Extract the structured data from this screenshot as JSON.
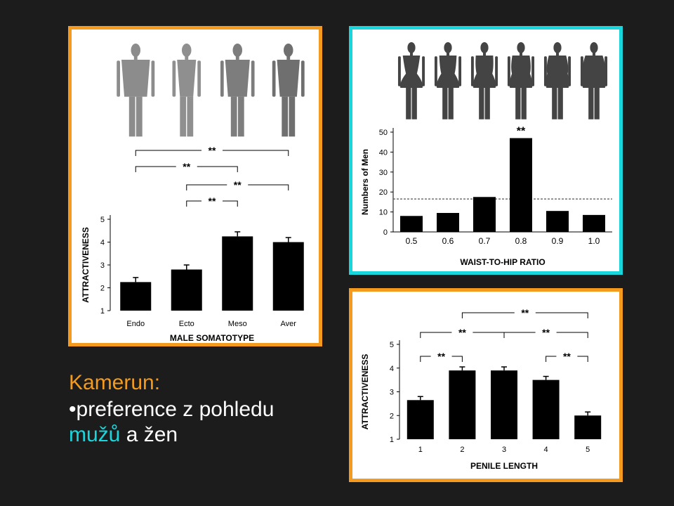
{
  "slide": {
    "title": "Kamerun:",
    "bullet_prefix": "•",
    "line1": "preference z pohledu",
    "line2_highlight": "mužů",
    "line2_rest": "a žen"
  },
  "colors": {
    "background": "#1c1c1c",
    "orange": "#f39a1f",
    "cyan": "#19d6dd",
    "bar": "#000000",
    "figure": "#8a8a8a"
  },
  "chart_data": [
    {
      "type": "bar",
      "categories": [
        "Endo",
        "Ecto",
        "Meso",
        "Aver"
      ],
      "values": [
        2.25,
        2.8,
        4.25,
        4.0
      ],
      "errors": [
        0.2,
        0.2,
        0.2,
        0.2
      ],
      "xlabel": "MALE SOMATOTYPE",
      "ylabel": "ATTRACTIVENESS",
      "ylim": [
        1,
        5
      ],
      "yticks": [
        "1",
        "2",
        "3",
        "4",
        "5"
      ],
      "annotations": [
        {
          "label": "**",
          "from": "Endo",
          "to": "Aver"
        },
        {
          "label": "**",
          "from": "Endo",
          "to": "Meso"
        },
        {
          "label": "**",
          "from": "Ecto",
          "to": "Aver"
        },
        {
          "label": "**",
          "from": "Ecto",
          "to": "Meso"
        }
      ]
    },
    {
      "type": "bar",
      "categories": [
        "0.5",
        "0.6",
        "0.7",
        "0.8",
        "0.9",
        "1.0"
      ],
      "values": [
        8,
        9.5,
        17.5,
        47,
        10.5,
        8.5
      ],
      "reference_line": 16.5,
      "xlabel": "WAIST-TO-HIP RATIO",
      "ylabel": "Numbers of Men",
      "ylim": [
        0,
        50
      ],
      "yticks": [
        "0",
        "10",
        "20",
        "30",
        "40",
        "50"
      ],
      "annotations": [
        {
          "label": "**",
          "at": "0.8"
        }
      ]
    },
    {
      "type": "bar",
      "categories": [
        "1",
        "2",
        "3",
        "4",
        "5"
      ],
      "values": [
        2.65,
        3.9,
        3.9,
        3.5,
        2.0
      ],
      "errors": [
        0.15,
        0.15,
        0.15,
        0.15,
        0.15
      ],
      "xlabel": "PENILE LENGTH",
      "ylabel": "ATTRACTIVENESS",
      "ylim": [
        1,
        5
      ],
      "yticks": [
        "1",
        "2",
        "3",
        "4",
        "5"
      ],
      "annotations": [
        {
          "label": "**",
          "from": "2",
          "to": "5"
        },
        {
          "label": "**",
          "from": "1",
          "to": "3"
        },
        {
          "label": "**",
          "from": "3",
          "to": "5"
        },
        {
          "label": "**",
          "from": "1",
          "to": "2"
        },
        {
          "label": "**",
          "from": "4",
          "to": "5"
        }
      ]
    }
  ]
}
